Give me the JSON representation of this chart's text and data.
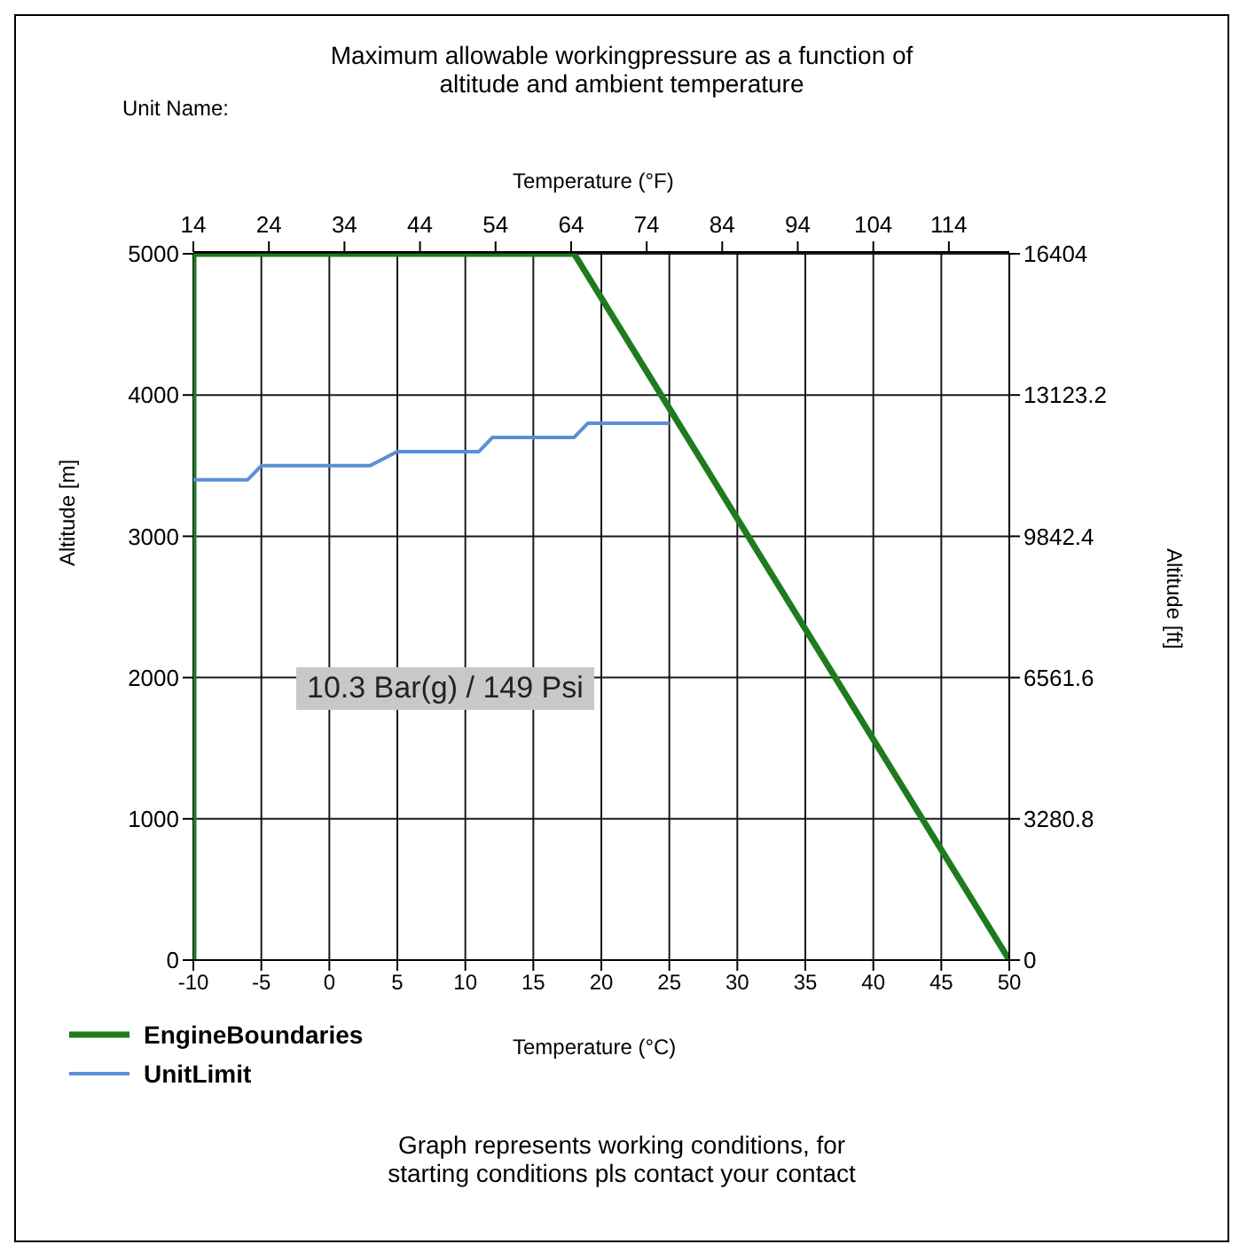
{
  "chart_data": {
    "type": "line",
    "title": "Maximum allowable workingpressure as a function of altitude and ambient temperature",
    "xlabel": "Temperature (°C)",
    "x2label": "Temperature (°F)",
    "ylabel": "Altitude [m]",
    "y2label": "Altitude [ft]",
    "xlim": [
      -10,
      50
    ],
    "xticks": [
      -10,
      -5,
      0,
      5,
      10,
      15,
      20,
      25,
      30,
      35,
      40,
      45,
      50
    ],
    "x2lim": [
      14,
      122
    ],
    "x2ticks": [
      14,
      24,
      34,
      44,
      54,
      64,
      74,
      84,
      94,
      104,
      114
    ],
    "ylim": [
      0,
      5000
    ],
    "yticks": [
      0,
      1000,
      2000,
      3000,
      4000,
      5000
    ],
    "y2lim": [
      0,
      16404
    ],
    "y2ticks": [
      0,
      3280.8,
      6561.6,
      9842.4,
      13123.2,
      16404
    ],
    "grid": true,
    "legend": "bottom left",
    "marker": "none",
    "line_style": "solid",
    "series": [
      {
        "name": "EngineBoundaries",
        "color": "#1e7b1e",
        "x": [
          -10,
          -10,
          18,
          50
        ],
        "values": [
          0,
          5000,
          5000,
          0
        ]
      },
      {
        "name": "UnitLimit",
        "color": "#5b8fd6",
        "x": [
          -10,
          -6,
          -5,
          3,
          5,
          11,
          12,
          18,
          19,
          25
        ],
        "values": [
          3400,
          3400,
          3500,
          3500,
          3600,
          3600,
          3700,
          3700,
          3800,
          3800
        ]
      }
    ],
    "annotations": [
      "Unit Name:",
      "10.3 Bar(g) / 149 Psi",
      "Graph represents working conditions, for starting conditions pls contact your contact"
    ]
  }
}
